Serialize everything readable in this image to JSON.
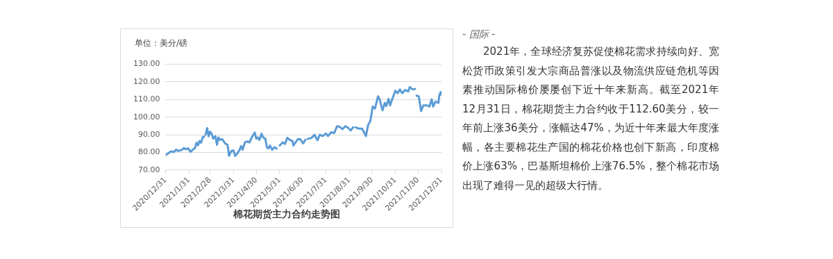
{
  "chart_data": {
    "type": "line",
    "title": "棉花期货主力合约走势图",
    "ylabel": "单位：美分/磅",
    "annotations": [
      "- 国际 -",
      "2021年，全球经济复苏促使棉花需求持续向好、宽松货币政策引发大宗商品普涨以及物流供应链危机等因素推动国际棉价屡屡创下近十年来新高。截至2021年12月31日，棉花期货主力合约收于112.60美分，较一年前上涨36美分，涨幅达47%，为近十年来最大年度涨幅，各主要棉花生产国的棉花价格也创下新高，印度棉价上涨63%，巴基斯坦棉价上涨76.5%，整个棉花市场出现了难得一见的超级大行情。"
    ],
    "x": [
      "2020-12-31",
      "2021-01-04",
      "2021-01-07",
      "2021-01-11",
      "2021-01-14",
      "2021-01-17",
      "2021-01-22",
      "2021-01-24",
      "2021-01-27",
      "2021-01-30",
      "2021-02-02",
      "2021-02-05",
      "2021-02-08",
      "2021-02-10",
      "2021-02-12",
      "2021-02-14",
      "2021-02-16",
      "2021-02-18",
      "2021-02-20",
      "2021-02-21",
      "2021-02-22",
      "2021-02-24",
      "2021-02-26",
      "2021-02-28",
      "2021-03-02",
      "2021-03-04",
      "2021-03-07",
      "2021-03-09",
      "2021-03-11",
      "2021-03-13",
      "2021-03-16",
      "2021-03-20",
      "2021-03-23",
      "2021-03-25",
      "2021-03-28",
      "2021-03-31",
      "2021-04-02",
      "2021-04-05",
      "2021-04-08",
      "2021-04-10",
      "2021-04-12",
      "2021-04-15",
      "2021-04-18",
      "2021-04-21",
      "2021-04-24",
      "2021-04-26",
      "2021-04-28",
      "2021-04-30",
      "2021-05-02",
      "2021-05-04",
      "2021-05-07",
      "2021-05-09",
      "2021-05-12",
      "2021-05-14",
      "2021-05-16",
      "2021-05-18",
      "2021-05-21",
      "2021-05-24",
      "2021-05-27",
      "2021-05-29",
      "2021-05-31",
      "2021-06-04",
      "2021-06-07",
      "2021-06-10",
      "2021-06-13",
      "2021-06-17",
      "2021-06-18",
      "2021-06-21",
      "2021-06-24",
      "2021-06-27",
      "2021-07-01",
      "2021-07-04",
      "2021-07-05",
      "2021-07-07",
      "2021-07-12",
      "2021-07-16",
      "2021-07-20",
      "2021-07-23",
      "2021-07-27",
      "2021-07-31",
      "2021-08-03",
      "2021-08-07",
      "2021-08-11",
      "2021-08-15",
      "2021-08-18",
      "2021-08-22",
      "2021-08-26",
      "2021-08-30",
      "2021-09-02",
      "2021-09-05",
      "2021-09-06",
      "2021-09-08",
      "2021-09-13",
      "2021-09-17",
      "2021-09-22",
      "2021-09-25",
      "2021-09-28",
      "2021-10-01",
      "2021-10-04",
      "2021-10-08",
      "2021-10-10",
      "2021-10-14",
      "2021-10-17",
      "2021-10-19",
      "2021-10-22",
      "2021-10-24",
      "2021-10-27",
      "2021-10-31",
      "2021-11-03",
      "2021-11-06",
      "2021-11-09",
      "2021-11-13",
      "2021-11-17",
      "2021-11-19",
      "2021-11-23",
      "2021-11-26",
      "2021-11-27",
      "2021-11-28",
      "2021-12-01",
      "2021-12-04",
      "2021-12-07",
      "2021-12-12",
      "2021-12-15",
      "2021-12-18",
      "2021-12-20",
      "2021-12-23",
      "2021-12-27",
      "2021-12-28",
      "2021-12-30",
      "2021-12-31"
    ],
    "series": [
      {
        "color": "#5b9bd5",
        "values": [
          78.5,
          79.5,
          80.6,
          80.2,
          81.5,
          80.8,
          81.5,
          82.5,
          81.8,
          82.3,
          80.3,
          81.5,
          82.5,
          85.5,
          84.0,
          86.5,
          85.5,
          88.5,
          89.0,
          null,
          90.0,
          93.8,
          89.2,
          91.7,
          90.6,
          87.8,
          89.2,
          84.3,
          88.5,
          87.1,
          87.5,
          85.0,
          84.3,
          78.0,
          80.8,
          81.1,
          78.0,
          79.4,
          81.5,
          83.6,
          81.5,
          85.7,
          86.2,
          85.7,
          88.5,
          89.9,
          91.3,
          87.8,
          88.5,
          87.1,
          90.6,
          88.5,
          87.8,
          82.9,
          82.2,
          83.9,
          81.5,
          82.9,
          82.2,
          null,
          83.9,
          85.7,
          84.8,
          88.3,
          87.1,
          86.4,
          83.9,
          85.7,
          87.5,
          87.6,
          85.1,
          87.2,
          null,
          87.6,
          88.2,
          90.0,
          86.9,
          90.0,
          89.3,
          90.7,
          89.3,
          91.4,
          91.0,
          94.9,
          94.6,
          93.2,
          94.9,
          93.8,
          92.4,
          94.2,
          null,
          94.2,
          93.5,
          93.5,
          89.3,
          95.6,
          97.9,
          106.0,
          104.9,
          111.8,
          110.4,
          103.9,
          108.1,
          106.3,
          110.4,
          106.7,
          110.4,
          115.0,
          113.6,
          115.7,
          113.6,
          115.4,
          114.6,
          117.1,
          115.7,
          116.0,
          null,
          112.2,
          111.8,
          103.5,
          106.7,
          106.7,
          106.0,
          110.1,
          106.0,
          108.8,
          108.1,
          112.2,
          114.3,
          112.6
        ]
      }
    ],
    "xlim": [
      "2020-12-31",
      "2021-12-31"
    ],
    "xticks": [
      {
        "value": "2020-12-31",
        "label": "2020/12/31"
      },
      {
        "value": "2021-01-31",
        "label": "2021/1/31"
      },
      {
        "value": "2021-02-28",
        "label": "2021/2/28"
      },
      {
        "value": "2021-03-31",
        "label": "2021/3/31"
      },
      {
        "value": "2021-04-30",
        "label": "2021/4/30"
      },
      {
        "value": "2021-05-31",
        "label": "2021/5/31"
      },
      {
        "value": "2021-06-30",
        "label": "2021/6/30"
      },
      {
        "value": "2021-07-31",
        "label": "2021/7/31"
      },
      {
        "value": "2021-08-31",
        "label": "2021/8/31"
      },
      {
        "value": "2021-09-30",
        "label": "2021/9/30"
      },
      {
        "value": "2021-10-31",
        "label": "2021/10/31"
      },
      {
        "value": "2021-11-30",
        "label": "2021/11/30"
      },
      {
        "value": "2021-12-31",
        "label": "2021/12/31"
      }
    ],
    "ylim": [
      70,
      130
    ],
    "yticks": [
      {
        "value": 70,
        "label": "70.00"
      },
      {
        "value": 80,
        "label": "80.00"
      },
      {
        "value": 90,
        "label": "90.00"
      },
      {
        "value": 100,
        "label": "100.00"
      },
      {
        "value": 110,
        "label": "110.00"
      },
      {
        "value": 120,
        "label": "120.00"
      },
      {
        "value": 130,
        "label": "130.00"
      }
    ],
    "grid": "y",
    "legend": false,
    "marker": "none",
    "line_style": "solid"
  }
}
